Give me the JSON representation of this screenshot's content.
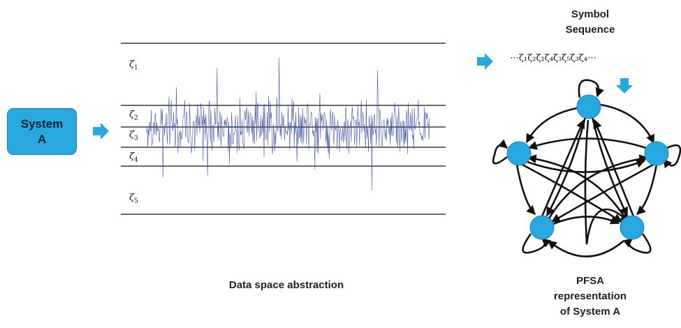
{
  "system_box": {
    "line1": "System",
    "line2": "A"
  },
  "partitions": [
    {
      "symbol": "ζ",
      "index": "1"
    },
    {
      "symbol": "ζ",
      "index": "2"
    },
    {
      "symbol": "ζ",
      "index": "3"
    },
    {
      "symbol": "ζ",
      "index": "4"
    },
    {
      "symbol": "ζ",
      "index": "5"
    }
  ],
  "symbol_sequence": {
    "title_line1": "Symbol",
    "title_line2": "Sequence",
    "sequence": "⋯ζ₁ζ₂ζ₂ζ₄ζ₃ζ₅ζ₃ζ₄⋯"
  },
  "data_space_label": "Data space abstraction",
  "pfsa_label": {
    "line1": "PFSA",
    "line2": "representation",
    "line3": "of System A"
  },
  "colors": {
    "node": "#29a8e0",
    "signal": "#3a4fa0",
    "arrow": "#29a8e0"
  }
}
